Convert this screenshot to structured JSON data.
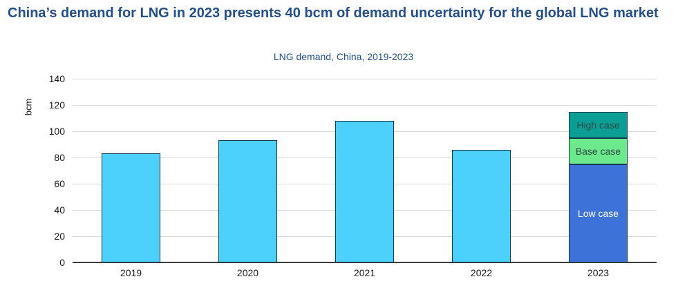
{
  "header": {
    "title": "China’s demand for LNG in 2023 presents 40 bcm of demand uncertainty for the global LNG market"
  },
  "chart_data": {
    "type": "bar",
    "stacked": true,
    "title": "LNG demand, China, 2019-2023",
    "xlabel": "",
    "ylabel": "bcm",
    "ylim": [
      0,
      140
    ],
    "ytick_step": 20,
    "grid": "horizontal",
    "legend_position": "inside-bar-labels",
    "categories": [
      "2019",
      "2020",
      "2021",
      "2022",
      "2023"
    ],
    "bars": [
      {
        "category": "2019",
        "segments": [
          {
            "name": "LNG demand",
            "value": 83,
            "color": "#4bd1fc"
          }
        ]
      },
      {
        "category": "2020",
        "segments": [
          {
            "name": "LNG demand",
            "value": 93,
            "color": "#4bd1fc"
          }
        ]
      },
      {
        "category": "2021",
        "segments": [
          {
            "name": "LNG demand",
            "value": 108,
            "color": "#4bd1fc"
          }
        ]
      },
      {
        "category": "2022",
        "segments": [
          {
            "name": "LNG demand",
            "value": 86,
            "color": "#4bd1fc"
          }
        ]
      },
      {
        "category": "2023",
        "segments": [
          {
            "name": "Low case",
            "value": 75,
            "color": "#3d72d8",
            "label": "Low case",
            "label_color": "#ffffff"
          },
          {
            "name": "Base case",
            "value": 20,
            "color": "#6ce98c",
            "label": "Base case",
            "label_color": "#2c4a44"
          },
          {
            "name": "High case",
            "value": 20,
            "color": "#0a9e95",
            "label": "High case",
            "label_color": "#2c4a44"
          }
        ]
      }
    ]
  },
  "colors": {
    "bg": "#ffffff",
    "title-color": "#23508c",
    "axis-text": "#1a1a1a",
    "grid": "#d9d9d9",
    "axis-line": "#3c3c3c",
    "bar-border": "#14384e"
  }
}
